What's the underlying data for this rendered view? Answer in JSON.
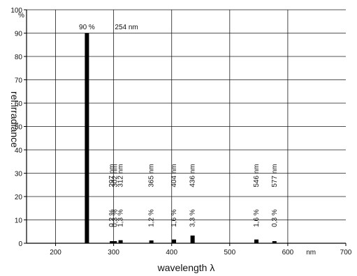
{
  "chart_data": {
    "type": "bar",
    "xlabel": "wavelength λ",
    "ylabel": "rel.irradiance",
    "x_unit_label": "nm",
    "y_unit_label": "%",
    "xlim": [
      150,
      700
    ],
    "ylim": [
      0,
      100
    ],
    "x_ticks": [
      200,
      300,
      400,
      500,
      600,
      700
    ],
    "y_ticks": [
      0,
      10,
      20,
      30,
      40,
      50,
      60,
      70,
      80,
      90,
      100
    ],
    "x_tick_labels": [
      "200",
      "300",
      "400",
      "500",
      "600",
      "700"
    ],
    "y_tick_labels": [
      "0",
      "10",
      "20",
      "30",
      "40",
      "50",
      "60",
      "70",
      "80",
      "90",
      "100"
    ],
    "grid": true,
    "bars": [
      {
        "x": 254,
        "value": 90,
        "label_nm": "254 nm",
        "label_pct": "90 %"
      },
      {
        "x": 297,
        "value": 0.2,
        "label_nm": "297 nm",
        "label_pct": "0,2 %"
      },
      {
        "x": 302,
        "value": 0.3,
        "label_nm": "302 nm",
        "label_pct": "0,3 %"
      },
      {
        "x": 312,
        "value": 1.3,
        "label_nm": "312 nm",
        "label_pct": "1,3 %"
      },
      {
        "x": 365,
        "value": 1.2,
        "label_nm": "365 nm",
        "label_pct": "1,2 %"
      },
      {
        "x": 404,
        "value": 1.6,
        "label_nm": "404 nm",
        "label_pct": "1,6 %"
      },
      {
        "x": 436,
        "value": 3.3,
        "label_nm": "436 nm",
        "label_pct": "3,3 %"
      },
      {
        "x": 546,
        "value": 1.6,
        "label_nm": "546 nm",
        "label_pct": "1,6 %"
      },
      {
        "x": 577,
        "value": 0.3,
        "label_nm": "577 nm",
        "label_pct": "0,3 %"
      }
    ]
  }
}
